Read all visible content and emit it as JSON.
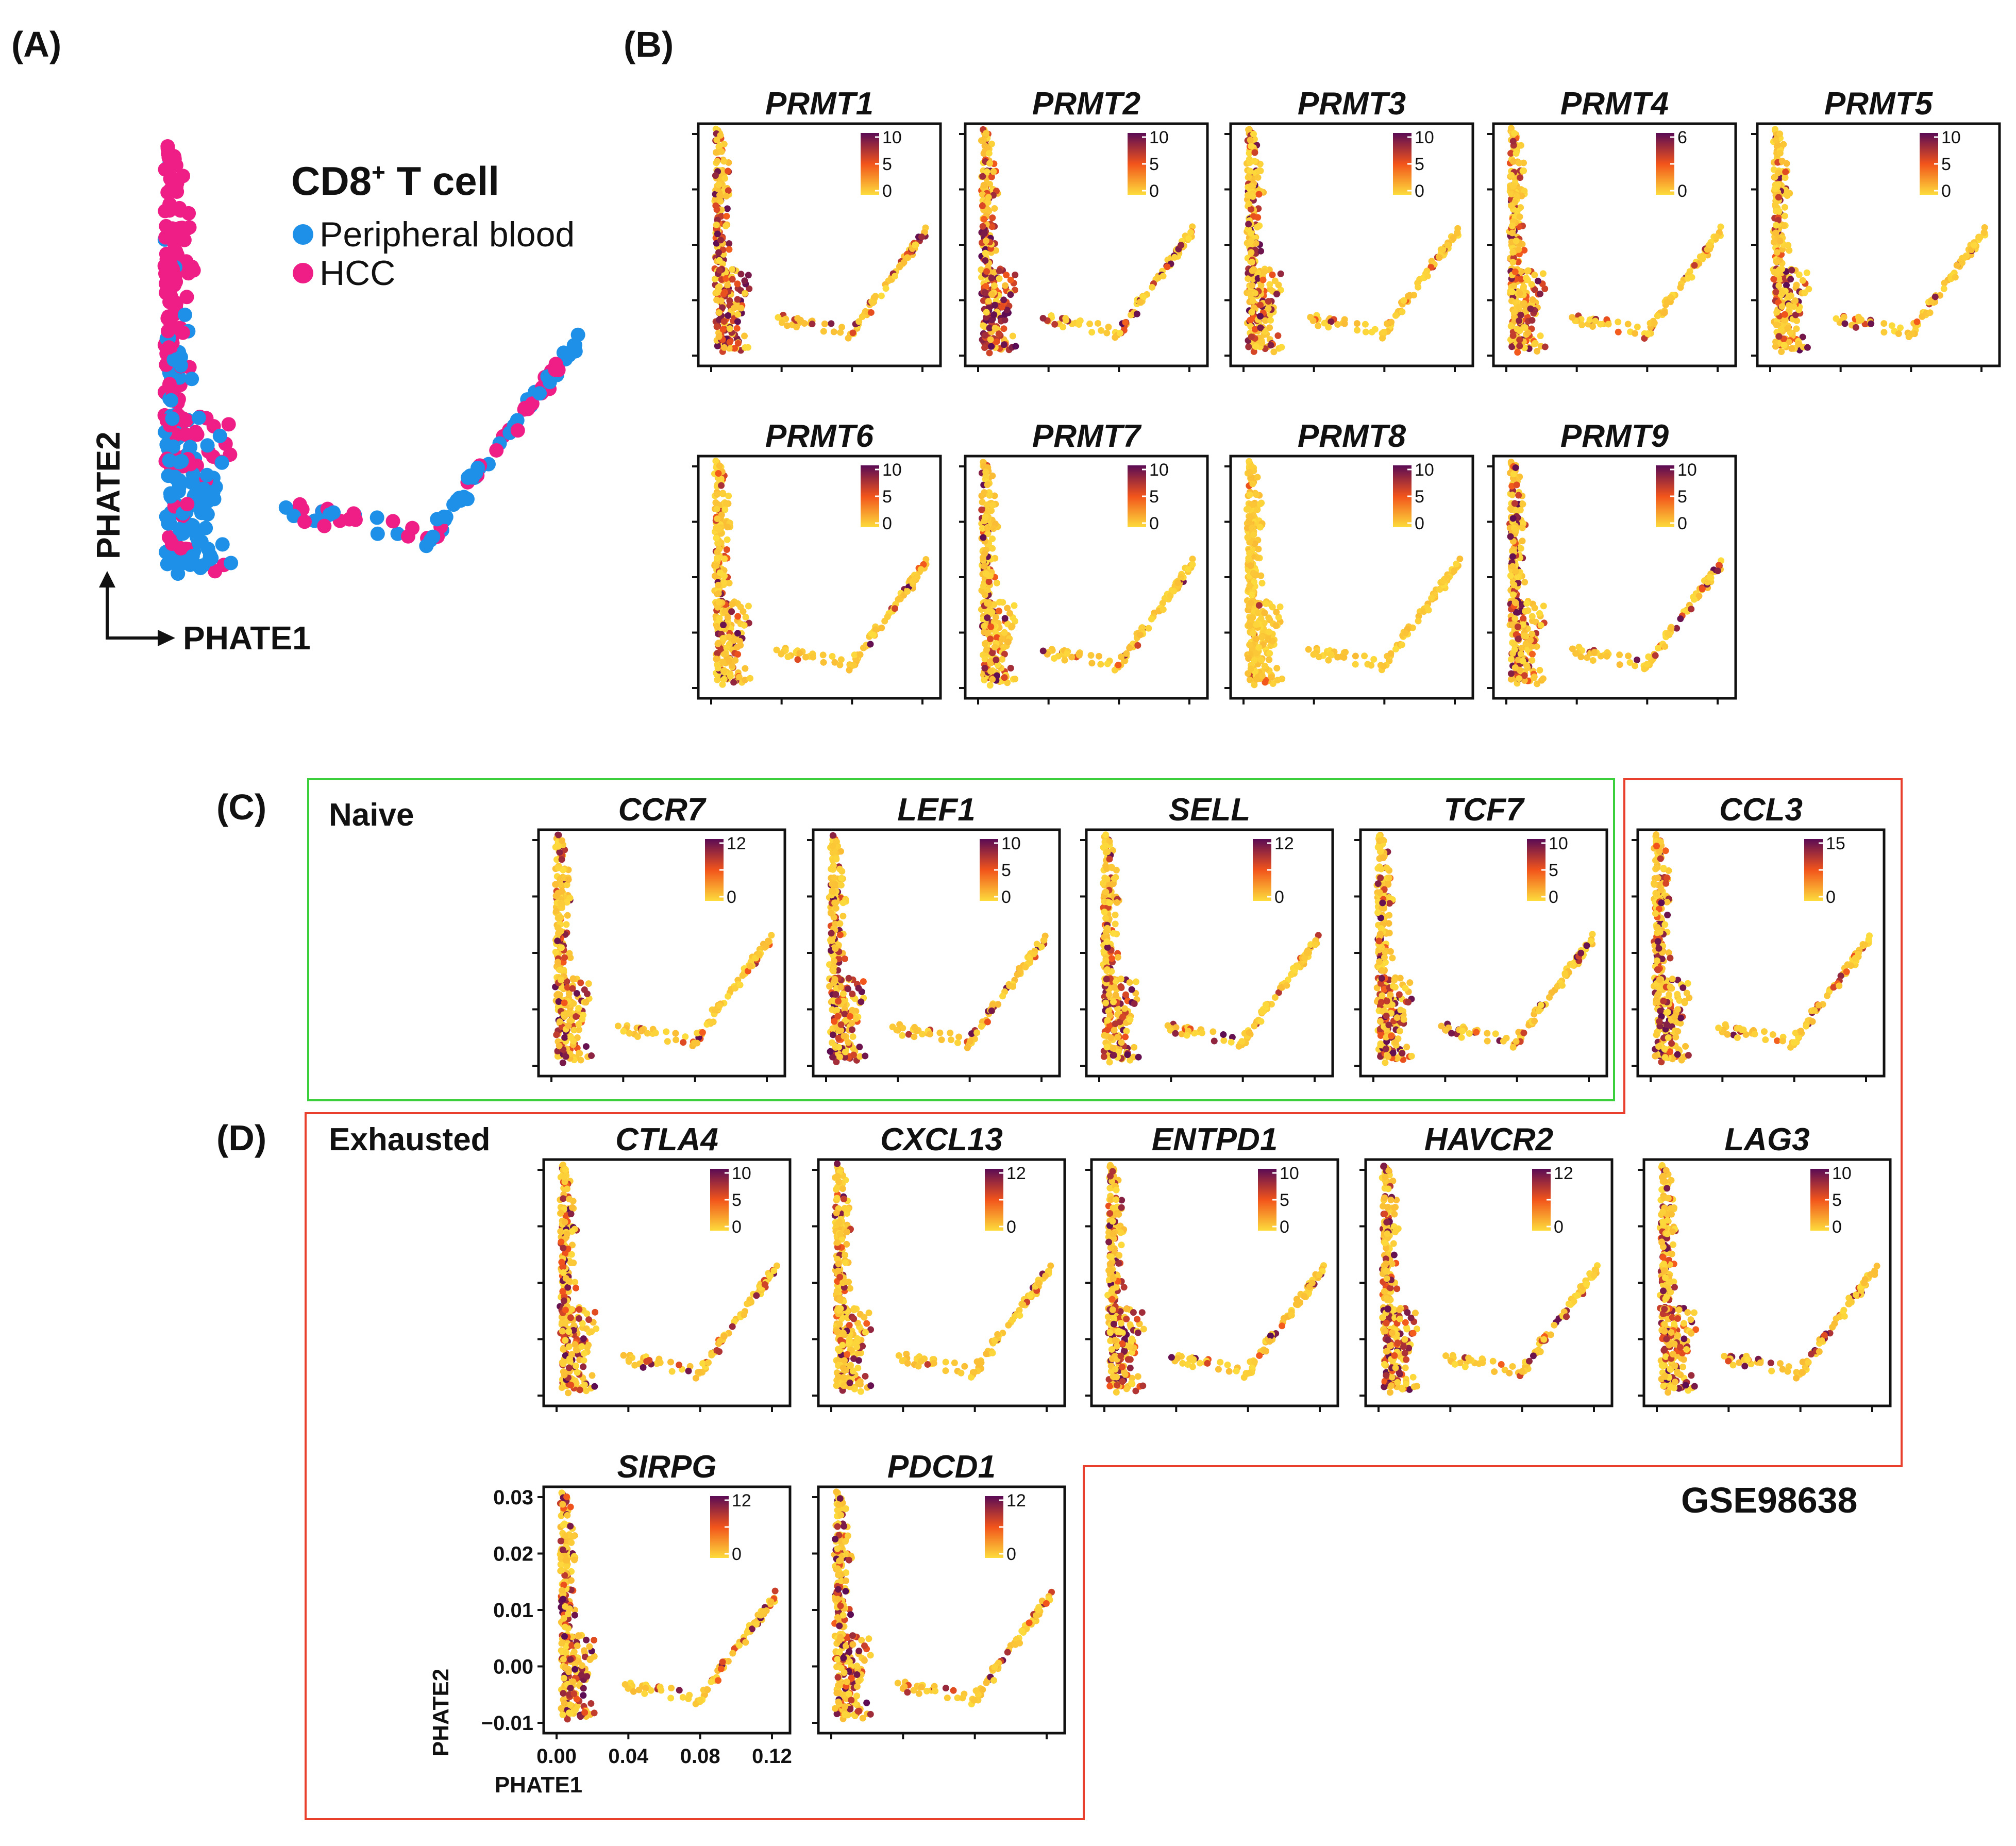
{
  "figure": {
    "panel_letters": [
      "(A)",
      "(B)",
      "(C)",
      "(D)"
    ],
    "dataset_label": "GSE98638",
    "panelA": {
      "legend_title_main": "CD8",
      "legend_title_sup": "+",
      "legend_title_rest": " T cell",
      "legend": [
        {
          "label": "Peripheral blood",
          "color": "#1e90e8"
        },
        {
          "label": "HCC",
          "color": "#ee1e86"
        }
      ],
      "x_axis": "PHATE1",
      "y_axis": "PHATE2"
    },
    "group_labels": {
      "naive": "Naive",
      "exhausted": "Exhausted"
    },
    "colors": {
      "low": "#fddc3c",
      "mid": "#f2541b",
      "high": "#5a0b55",
      "naive_box": "#3ccf3c",
      "exhausted_box": "#e8402c"
    },
    "panels": [
      {
        "gene": "PRMT1",
        "cb": [
          "10",
          "5",
          "0"
        ],
        "level": 0.55
      },
      {
        "gene": "PRMT2",
        "cb": [
          "10",
          "5",
          "0"
        ],
        "level": 0.65
      },
      {
        "gene": "PRMT3",
        "cb": [
          "10",
          "5",
          "0"
        ],
        "level": 0.3
      },
      {
        "gene": "PRMT4",
        "cb": [
          "6",
          "",
          "0"
        ],
        "level": 0.3
      },
      {
        "gene": "PRMT5",
        "cb": [
          "10",
          "5",
          "0"
        ],
        "level": 0.3
      },
      {
        "gene": "PRMT6",
        "cb": [
          "10",
          "5",
          "0"
        ],
        "level": 0.2
      },
      {
        "gene": "PRMT7",
        "cb": [
          "10",
          "5",
          "0"
        ],
        "level": 0.25
      },
      {
        "gene": "PRMT8",
        "cb": [
          "10",
          "5",
          "0"
        ],
        "level": 0.03
      },
      {
        "gene": "PRMT9",
        "cb": [
          "10",
          "5",
          "0"
        ],
        "level": 0.35
      },
      {
        "gene": "CCR7",
        "cb": [
          "12",
          "",
          "0"
        ],
        "level": 0.3
      },
      {
        "gene": "LEF1",
        "cb": [
          "10",
          "5",
          "0"
        ],
        "level": 0.35
      },
      {
        "gene": "SELL",
        "cb": [
          "12",
          "",
          "0"
        ],
        "level": 0.35
      },
      {
        "gene": "TCF7",
        "cb": [
          "10",
          "5",
          "0"
        ],
        "level": 0.4
      },
      {
        "gene": "CCL3",
        "cb": [
          "15",
          "",
          "0"
        ],
        "level": 0.35
      },
      {
        "gene": "CTLA4",
        "cb": [
          "10",
          "5",
          "0"
        ],
        "level": 0.35
      },
      {
        "gene": "CXCL13",
        "cb": [
          "12",
          "",
          "0"
        ],
        "level": 0.3
      },
      {
        "gene": "ENTPD1",
        "cb": [
          "10",
          "5",
          "0"
        ],
        "level": 0.35
      },
      {
        "gene": "HAVCR2",
        "cb": [
          "12",
          "",
          "0"
        ],
        "level": 0.4
      },
      {
        "gene": "LAG3",
        "cb": [
          "10",
          "5",
          "0"
        ],
        "level": 0.4
      },
      {
        "gene": "SIRPG",
        "cb": [
          "12",
          "",
          "0"
        ],
        "level": 0.4
      },
      {
        "gene": "PDCD1",
        "cb": [
          "12",
          "",
          "0"
        ],
        "level": 0.35
      }
    ],
    "sirpg_axes": {
      "y_ticks": [
        "0.03",
        "0.02",
        "0.01",
        "0.00",
        "−0.01"
      ],
      "x_ticks": [
        "0.00",
        "0.04",
        "0.08",
        "0.12"
      ],
      "x_label": "PHATE1",
      "y_label": "PHATE2"
    }
  }
}
